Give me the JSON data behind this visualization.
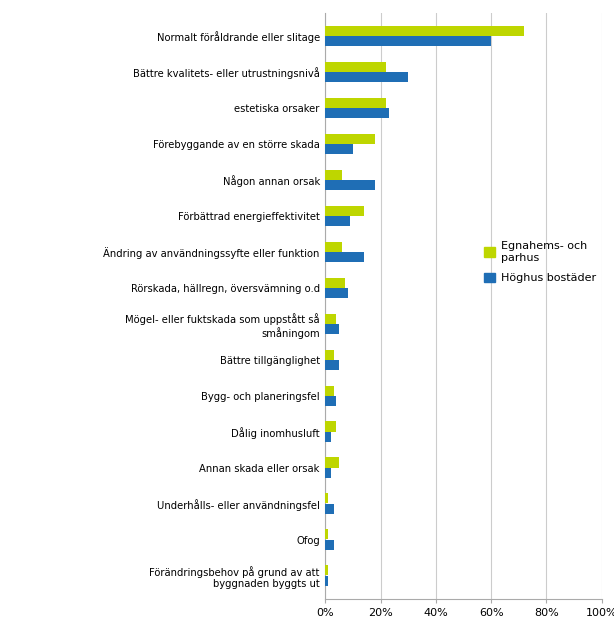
{
  "categories": [
    "Normalt föråldrande eller slitage",
    "Bättre kvalitets- eller utrustningsnivå",
    "estetiska orsaker",
    "Förebyggande av en större skada",
    "Någon annan orsak",
    "Förbättrad energieffektivitet",
    "Ändring av användningssyfte eller funktion",
    "Rörskada, hällregn, översvämning o.d",
    "Mögel- eller fuktskada som uppstått så\nsmåningom",
    "Bättre tillgänglighet",
    "Bygg- och planeringsfel",
    "Dålig inomhusluft",
    "Annan skada eller orsak",
    "Underhålls- eller användningsfel",
    "Ofog",
    "Förändringsbehov på grund av att\nbyggnaden byggts ut"
  ],
  "green_values": [
    72,
    22,
    22,
    18,
    6,
    14,
    6,
    7,
    4,
    3,
    3,
    4,
    5,
    1,
    1,
    1
  ],
  "blue_values": [
    60,
    30,
    23,
    10,
    18,
    9,
    14,
    8,
    5,
    5,
    4,
    2,
    2,
    3,
    3,
    1
  ],
  "green_color": "#bed600",
  "blue_color": "#1f6eb5",
  "legend_green": "Egnahems- och\nparhus",
  "legend_blue": "Höghus bostäder",
  "xlim": [
    0,
    100
  ],
  "xticks": [
    0,
    20,
    40,
    60,
    80,
    100
  ],
  "xticklabels": [
    "0%",
    "20%",
    "40%",
    "60%",
    "80%",
    "100%"
  ],
  "background_color": "#ffffff",
  "grid_color": "#cccccc",
  "bar_height": 0.28,
  "bar_gap": 0.01
}
